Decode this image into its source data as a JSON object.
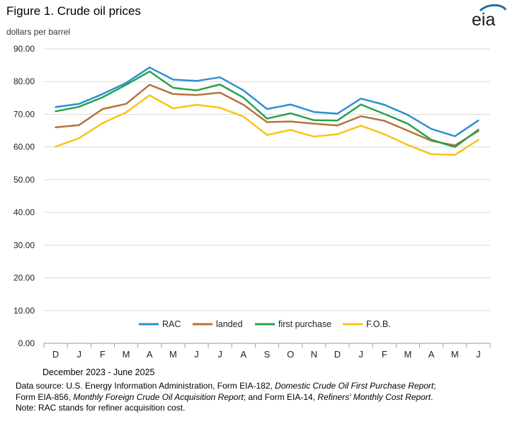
{
  "header": {
    "title": "Figure 1. Crude oil prices",
    "y_unit": "dollars per barrel",
    "logo_text": "eia"
  },
  "chart_data": {
    "type": "line",
    "categories": [
      "D",
      "J",
      "F",
      "M",
      "A",
      "M",
      "J",
      "J",
      "A",
      "S",
      "O",
      "N",
      "D",
      "J",
      "F",
      "M",
      "A",
      "M",
      "J"
    ],
    "x_axis_title": "December 2023 - June 2025",
    "ylim": [
      0,
      90
    ],
    "y_ticks": [
      "0.00",
      "10.00",
      "20.00",
      "30.00",
      "40.00",
      "50.00",
      "60.00",
      "70.00",
      "80.00",
      "90.00"
    ],
    "grid": true,
    "legend_position": "bottom-inside",
    "series": [
      {
        "name": "RAC",
        "color": "#2e8fd0",
        "values": [
          72.2,
          73.2,
          76.2,
          79.6,
          84.3,
          80.6,
          80.2,
          81.3,
          77.3,
          71.6,
          73.0,
          70.7,
          70.2,
          74.8,
          72.9,
          69.8,
          65.5,
          63.3,
          68.1
        ]
      },
      {
        "name": "landed",
        "color": "#b8713a",
        "values": [
          66.0,
          66.7,
          71.6,
          73.2,
          79.0,
          76.2,
          75.9,
          76.6,
          72.9,
          67.6,
          67.8,
          67.1,
          66.6,
          69.4,
          68.0,
          65.0,
          61.9,
          60.5,
          64.9
        ]
      },
      {
        "name": "first purchase",
        "color": "#27a14a",
        "values": [
          70.9,
          72.3,
          75.2,
          79.0,
          83.1,
          78.1,
          77.3,
          79.1,
          75.1,
          68.7,
          70.3,
          68.2,
          68.1,
          73.0,
          70.1,
          67.1,
          62.2,
          60.0,
          65.3
        ]
      },
      {
        "name": "F.O.B.",
        "color": "#f5c518",
        "values": [
          60.1,
          62.7,
          67.3,
          70.6,
          75.8,
          71.8,
          72.9,
          72.0,
          69.3,
          63.7,
          65.2,
          63.2,
          63.9,
          66.5,
          63.9,
          60.6,
          57.8,
          57.6,
          62.2
        ]
      }
    ]
  },
  "notes": {
    "line1_a": "Data source: U.S. Energy Information Administration, Form EIA-182, ",
    "line1_b": "Domestic Crude Oil First Purchase Report",
    "line1_c": ";",
    "line2_a": "Form EIA-856, ",
    "line2_b": "Monthly Foreign Crude Oil Acquisition Report",
    "line2_c": "; and Form EIA-14, ",
    "line2_d": "Refiners' Monthly Cost Report",
    "line2_e": ".",
    "line3": "Note: RAC stands for refiner acquisition cost."
  }
}
